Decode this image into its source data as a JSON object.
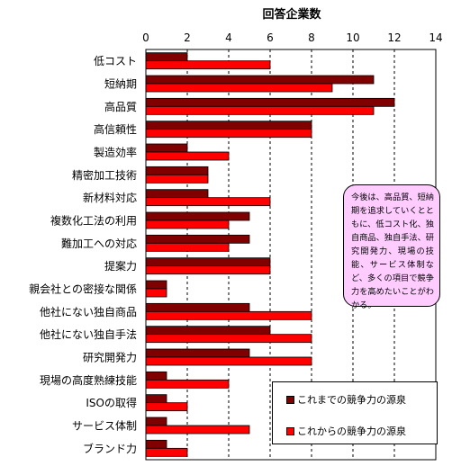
{
  "chart_data": {
    "type": "bar",
    "orientation": "horizontal",
    "title": "回答企業数",
    "xlim": [
      0,
      14
    ],
    "xticks": [
      0,
      2,
      4,
      6,
      8,
      10,
      12,
      14
    ],
    "grid": "vertical dashed",
    "categories": [
      "低コスト",
      "短納期",
      "高品質",
      "高信頼性",
      "製造効率",
      "精密加工技術",
      "新材料対応",
      "複数化工法の利用",
      "難加工への対応",
      "提案力",
      "親会社との密接な関係",
      "他社にない独自商品",
      "他社にない独自手法",
      "研究開発力",
      "現場の高度熟練技能",
      "ISOの取得",
      "サービス体制",
      "ブランド力"
    ],
    "series": [
      {
        "name": "これまでの競争力の源泉",
        "color": "#800000",
        "values": [
          2,
          11,
          12,
          8,
          2,
          3,
          3,
          5,
          5,
          6,
          1,
          5,
          6,
          5,
          1,
          1,
          1,
          1
        ]
      },
      {
        "name": "これからの競争力の源泉",
        "color": "#ff0000",
        "values": [
          6,
          9,
          11,
          8,
          4,
          3,
          6,
          4,
          4,
          6,
          1,
          8,
          8,
          8,
          4,
          2,
          5,
          2
        ]
      }
    ],
    "legend_position": "bottom-right"
  },
  "annotation": "今後は、高品質、短納期を追求していくとともに、低コスト化、独自商品、独自手法、研究開発力、現場の技能、サービス体制など、多くの項目で競争力を高めたいことがわかる。"
}
